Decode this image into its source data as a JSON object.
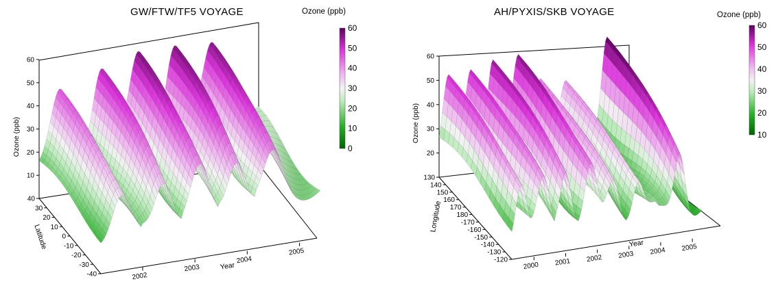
{
  "chart_data": [
    {
      "type": "surface3d",
      "title": "GW/FTW/TF5  VOYAGE",
      "zlabel": "Ozone  (ppb)",
      "ylabel": "Latitude",
      "xlabel": "Year",
      "zticks": [
        10,
        20,
        30,
        40,
        50,
        60
      ],
      "zlim": [
        0,
        60
      ],
      "yticks": [
        40,
        30,
        20,
        10,
        0,
        -10,
        -20,
        -30,
        -40
      ],
      "xticks": [
        "2002",
        "2003",
        "2004",
        "2005"
      ],
      "colorbar": {
        "title": "Ozone  (ppb)",
        "ticks": [
          0,
          10,
          20,
          30,
          40,
          50,
          60
        ],
        "range": [
          0,
          60
        ],
        "low_color": "#006400",
        "mid_color": "#f2f2f2",
        "high_color": "#6b006b"
      },
      "seasonal_ridges": [
        {
          "year": 2001.6,
          "peak_ozone": 46,
          "min_ozone": 16
        },
        {
          "year": 2002.4,
          "peak_ozone": 52,
          "min_ozone": 18
        },
        {
          "year": 2003.1,
          "peak_ozone": 57,
          "min_ozone": 20
        },
        {
          "year": 2003.8,
          "peak_ozone": 57,
          "min_ozone": 22
        },
        {
          "year": 2004.5,
          "peak_ozone": 56,
          "min_ozone": 24
        }
      ]
    },
    {
      "type": "surface3d",
      "title": "AH/PYXIS/SKB    VOYAGE",
      "zlabel": "Ozone  (ppb)",
      "ylabel": "Longitude",
      "xlabel": "Year",
      "zticks": [
        20,
        30,
        40,
        50,
        60
      ],
      "zlim": [
        10,
        60
      ],
      "yticks": [
        130,
        140,
        150,
        160,
        170,
        180,
        -170,
        -160,
        -150,
        -140,
        -130,
        -120
      ],
      "xticks": [
        "2000",
        "2001",
        "2002",
        "2003",
        "2004",
        "2005"
      ],
      "colorbar": {
        "title": "Ozone  (ppb)",
        "ticks": [
          10,
          20,
          30,
          40,
          50,
          60
        ],
        "range": [
          10,
          60
        ],
        "low_color": "#006400",
        "mid_color": "#f2f2f2",
        "high_color": "#6b006b"
      },
      "seasonal_ridges": [
        {
          "year": 1999.6,
          "peak_ozone": 52,
          "min_ozone": 22
        },
        {
          "year": 2000.3,
          "peak_ozone": 53,
          "min_ozone": 24
        },
        {
          "year": 2001.0,
          "peak_ozone": 56,
          "min_ozone": 26
        },
        {
          "year": 2001.8,
          "peak_ozone": 57,
          "min_ozone": 26
        },
        {
          "year": 2002.5,
          "peak_ozone": 46,
          "min_ozone": 26
        },
        {
          "year": 2003.3,
          "peak_ozone": 44,
          "min_ozone": 26
        },
        {
          "year": 2004.6,
          "peak_ozone": 60,
          "min_ozone": 24
        }
      ]
    }
  ]
}
